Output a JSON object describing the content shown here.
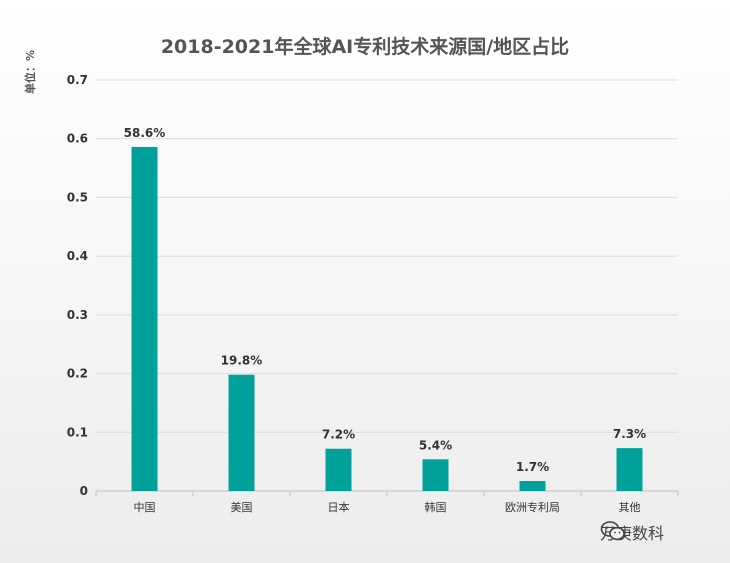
{
  "chart_data": {
    "type": "bar",
    "title": "2018-2021年全球AI专利技术来源国/地区占比",
    "ylabel": "单位：%",
    "categories": [
      "中国",
      "美国",
      "日本",
      "韩国",
      "欧洲专利局",
      "其他"
    ],
    "values": [
      0.586,
      0.198,
      0.072,
      0.054,
      0.017,
      0.073
    ],
    "data_labels": [
      "58.6%",
      "19.8%",
      "7.2%",
      "5.4%",
      "1.7%",
      "7.3%"
    ],
    "yticks": [
      "0",
      "0.1",
      "0.2",
      "0.3",
      "0.4",
      "0.5",
      "0.6",
      "0.7"
    ],
    "ylim": [
      0,
      0.7
    ],
    "grid": true,
    "bar_color": "#00a19a"
  },
  "watermark": {
    "icon": "wechat-icon",
    "text": "万庚数科"
  }
}
